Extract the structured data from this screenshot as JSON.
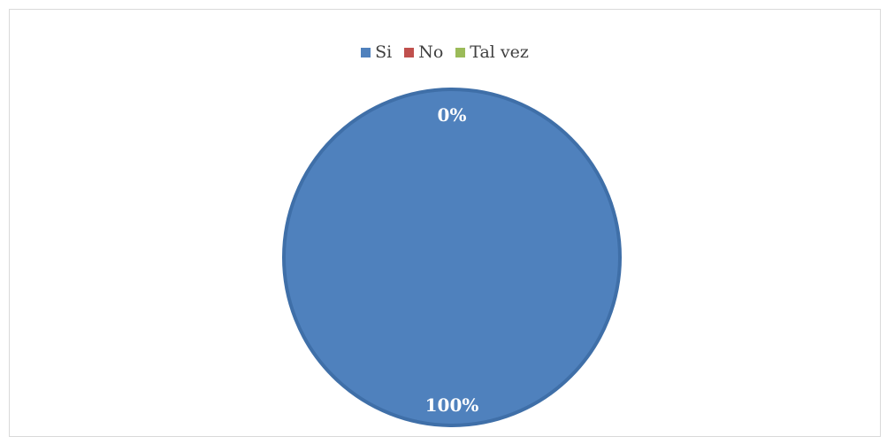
{
  "chart_data": {
    "type": "pie",
    "categories": [
      "Si",
      "No",
      "Tal vez"
    ],
    "values": [
      100,
      0,
      0
    ],
    "data_labels": [
      "100%",
      "0%",
      "0%"
    ],
    "colors": [
      "#4f81bd",
      "#c0504d",
      "#9bbb59"
    ],
    "legend_position": "top",
    "title": ""
  }
}
